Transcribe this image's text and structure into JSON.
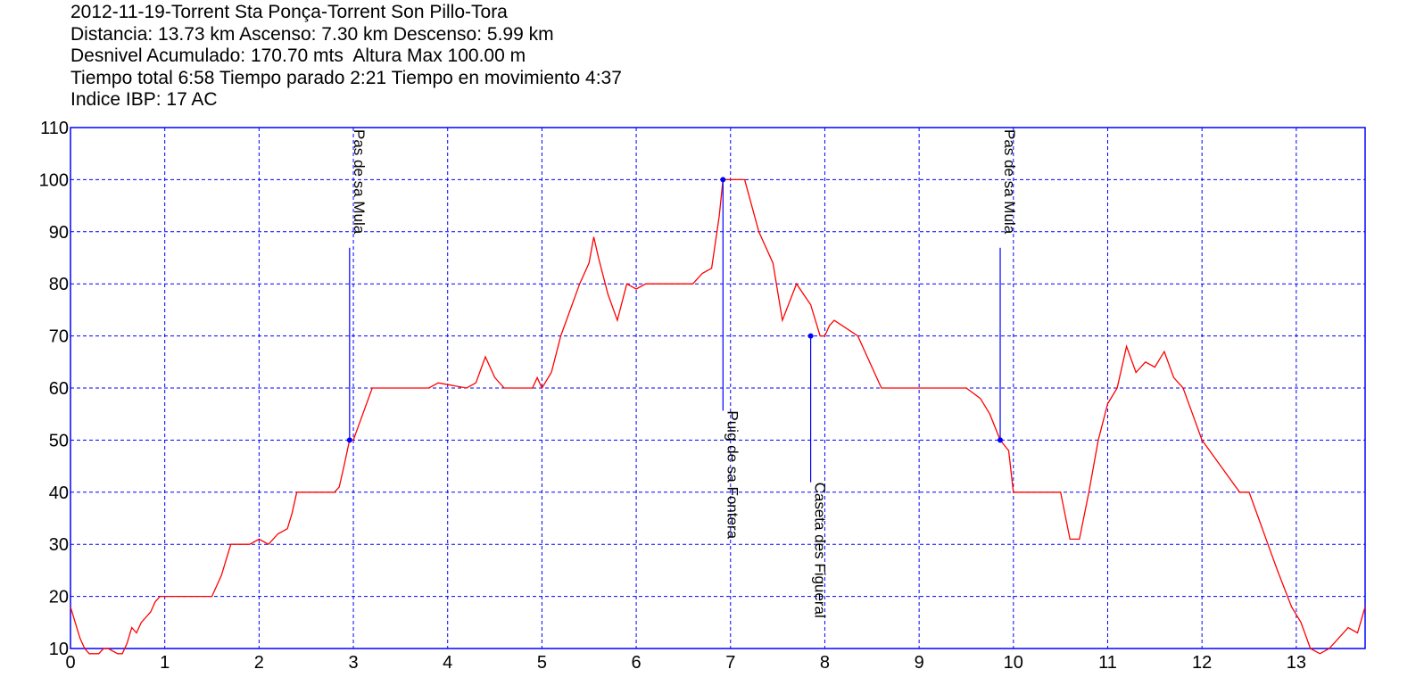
{
  "header": {
    "title": "2012-11-19-Torrent Sta Ponça-Torrent Son Pillo-Tora",
    "line2": "Distancia: 13.73 km Ascenso: 7.30 km Descenso: 5.99 km",
    "line3": "Desnivel Acumulado: 170.70 mts  Altura Max 100.00 m",
    "line4": "Tiempo total 6:58 Tiempo parado 2:21 Tiempo en movimiento 4:37",
    "line5": "Indice IBP: 17 AC"
  },
  "chart_data": {
    "type": "line",
    "xlim": [
      0,
      13.73
    ],
    "ylim": [
      10,
      110
    ],
    "x_ticks": [
      0,
      1,
      2,
      3,
      4,
      5,
      6,
      7,
      8,
      9,
      10,
      11,
      12,
      13
    ],
    "y_ticks": [
      10,
      20,
      30,
      40,
      50,
      60,
      70,
      80,
      90,
      100,
      110
    ],
    "grid": true,
    "colors": {
      "profile": "#ff0000",
      "axes": "#0000ff",
      "grid": "#0000ff",
      "waypoint": "#0000ff"
    },
    "series": [
      {
        "x": [
          0,
          0.05,
          0.1,
          0.15,
          0.2,
          0.3,
          0.35,
          0.4,
          0.5,
          0.55,
          0.6,
          0.65,
          0.7,
          0.75,
          0.8,
          0.85,
          0.9,
          0.95,
          1.0,
          1.3,
          1.5,
          1.55,
          1.6,
          1.7,
          1.8,
          1.9,
          2.0,
          2.1,
          2.2,
          2.3,
          2.35,
          2.4,
          2.6,
          2.7,
          2.8,
          2.85,
          2.9,
          2.96,
          3.0,
          3.1,
          3.2,
          3.5,
          3.8,
          3.9,
          4.2,
          4.3,
          4.4,
          4.5,
          4.6,
          4.7,
          4.9,
          4.95,
          5.0,
          5.1,
          5.2,
          5.3,
          5.4,
          5.5,
          5.55,
          5.6,
          5.7,
          5.8,
          5.9,
          6.0,
          6.1,
          6.5,
          6.6,
          6.7,
          6.8,
          6.88,
          6.92,
          7.05,
          7.15,
          7.3,
          7.45,
          7.55,
          7.7,
          7.85,
          7.95,
          8.0,
          8.05,
          8.1,
          8.35,
          8.6,
          9.5,
          9.65,
          9.75,
          9.86,
          9.95,
          10.0,
          10.5,
          10.6,
          10.7,
          10.8,
          10.9,
          11.0,
          11.1,
          11.2,
          11.3,
          11.4,
          11.5,
          11.6,
          11.7,
          11.8,
          11.9,
          12.0,
          12.2,
          12.4,
          12.5,
          12.6,
          12.7,
          12.8,
          12.95,
          13.05,
          13.15,
          13.25,
          13.35,
          13.45,
          13.55,
          13.65,
          13.73
        ],
        "y": [
          18,
          15,
          12,
          10,
          9,
          9,
          10,
          10,
          9,
          9,
          11,
          14,
          13,
          15,
          16,
          17,
          19,
          20,
          20,
          20,
          20,
          22,
          24,
          30,
          30,
          30,
          31,
          30,
          32,
          33,
          36,
          40,
          40,
          40,
          40,
          41,
          45,
          50,
          50,
          55,
          60,
          60,
          60,
          61,
          60,
          61,
          66,
          62,
          60,
          60,
          60,
          62,
          60,
          63,
          70,
          75,
          80,
          84,
          89,
          85,
          78,
          73,
          80,
          79,
          80,
          80,
          80,
          82,
          83,
          93,
          100,
          100,
          100,
          90,
          84,
          73,
          80,
          76,
          70,
          70,
          72,
          73,
          70,
          60,
          60,
          58,
          55,
          50,
          48,
          40,
          40,
          31,
          31,
          40,
          50,
          57,
          60,
          68,
          63,
          65,
          64,
          67,
          62,
          60,
          55,
          50,
          45,
          40,
          40,
          35,
          30,
          25,
          18,
          15,
          10,
          9,
          10,
          12,
          14,
          13,
          18
        ]
      }
    ],
    "waypoints": [
      {
        "label": "Pas de sa Mula",
        "x": 2.96,
        "y": 50,
        "side": "top"
      },
      {
        "label": "Puig de sa Fontera",
        "x": 6.92,
        "y": 100,
        "side": "bottom"
      },
      {
        "label": "Caseta des Figueral",
        "x": 7.85,
        "y": 70,
        "side": "bottom"
      },
      {
        "label": "Pas de sa Mula",
        "x": 9.86,
        "y": 50,
        "side": "top"
      }
    ]
  }
}
